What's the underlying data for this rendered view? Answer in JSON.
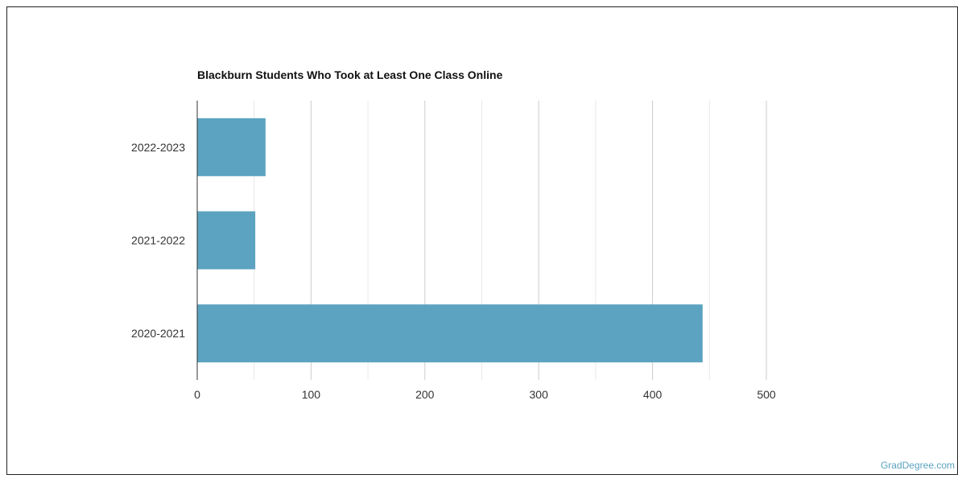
{
  "chart_data": {
    "type": "bar",
    "orientation": "horizontal",
    "title": "Blackburn Students Who Took at Least One Class Online",
    "categories": [
      "2022-2023",
      "2021-2022",
      "2020-2021"
    ],
    "values": [
      60,
      51,
      444
    ],
    "xlabel": "",
    "ylabel": "",
    "xlim": [
      0,
      500
    ],
    "xticks": [
      0,
      100,
      200,
      300,
      400,
      500
    ],
    "grid": true,
    "bar_color": "#5ba3c0",
    "grid_color": "#cccccc"
  },
  "watermark": "GradDegree.com"
}
